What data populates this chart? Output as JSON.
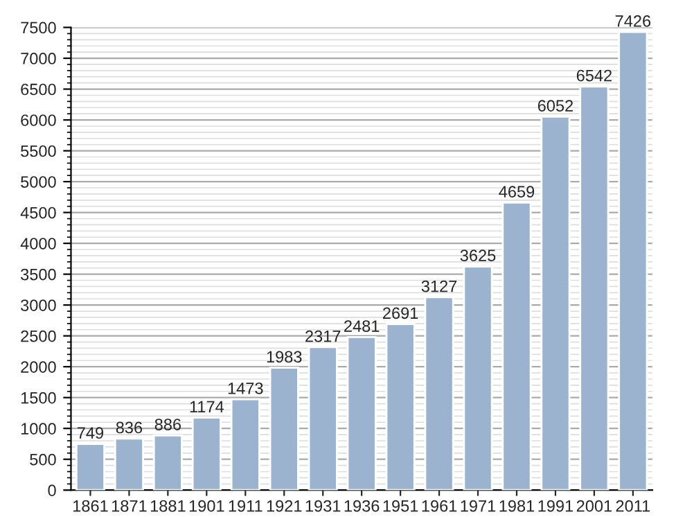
{
  "chart_data": {
    "type": "bar",
    "categories": [
      "1861",
      "1871",
      "1881",
      "1901",
      "1911",
      "1921",
      "1931",
      "1936",
      "1951",
      "1961",
      "1971",
      "1981",
      "1991",
      "2001",
      "2011"
    ],
    "values": [
      749,
      836,
      886,
      1174,
      1473,
      1983,
      2317,
      2481,
      2691,
      3127,
      3625,
      4659,
      6052,
      6542,
      7426
    ],
    "color": "#9bb3cf",
    "ylim": [
      0,
      7500
    ],
    "yticks": [
      0,
      500,
      1000,
      1500,
      2000,
      2500,
      3000,
      3500,
      4000,
      4500,
      5000,
      5500,
      6000,
      6500,
      7000,
      7500
    ],
    "grid": "y",
    "data_labels": true
  }
}
